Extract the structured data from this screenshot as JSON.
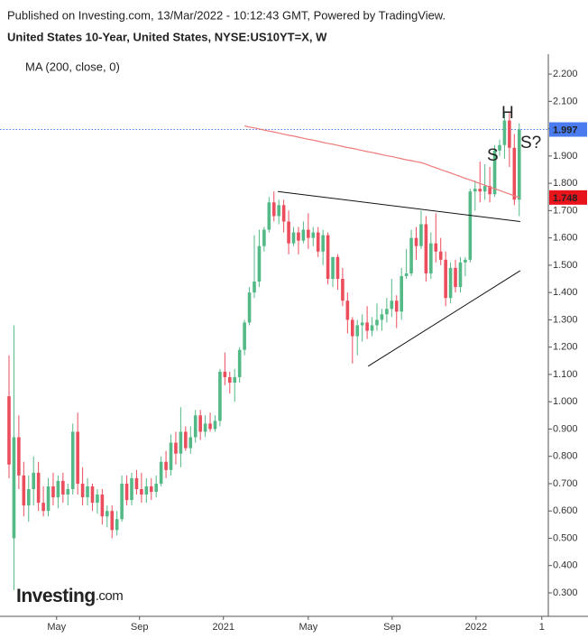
{
  "chart_data": {
    "type": "candlestick",
    "title": "Published on Investing.com, 13/Mar/2022 - 10:12:43 GMT, Powered by TradingView.",
    "subtitle": "United States 10-Year, United States, NYSE:US10YT=X, W",
    "up_color": "#53b987",
    "down_color": "#eb4d5c",
    "open": [
      1.02,
      0.5,
      0.87,
      0.73,
      0.62,
      0.68,
      0.74,
      0.63,
      0.6,
      0.69,
      0.65,
      0.71,
      0.66,
      0.68,
      0.89,
      0.7,
      0.65,
      0.69,
      0.63,
      0.66,
      0.58,
      0.6,
      0.53,
      0.57,
      0.7,
      0.64,
      0.72,
      0.68,
      0.66,
      0.69,
      0.67,
      0.7,
      0.78,
      0.75,
      0.85,
      0.81,
      0.89,
      0.83,
      0.87,
      0.95,
      0.89,
      0.92,
      0.9,
      0.93,
      1.11,
      1.09,
      1.07,
      1.09,
      1.19,
      1.29,
      1.4,
      1.44,
      1.57,
      1.63,
      1.73,
      1.68,
      1.72,
      1.66,
      1.58,
      1.62,
      1.59,
      1.63,
      1.6,
      1.62,
      1.55,
      1.61,
      1.45,
      1.53,
      1.45,
      1.37,
      1.3,
      1.24,
      1.28,
      1.29,
      1.26,
      1.28,
      1.3,
      1.32,
      1.34,
      1.37,
      1.33,
      1.46,
      1.47,
      1.6,
      1.57,
      1.65,
      1.47,
      1.58,
      1.55,
      1.52,
      1.38,
      1.49,
      1.42,
      1.51,
      1.52,
      1.77,
      1.78,
      1.77,
      1.79,
      1.76,
      1.92,
      1.94,
      2.03,
      1.93,
      1.74
    ],
    "high": [
      1.17,
      1.28,
      0.95,
      0.78,
      0.73,
      0.8,
      0.78,
      0.69,
      0.72,
      0.74,
      0.73,
      0.74,
      0.7,
      0.92,
      0.96,
      0.76,
      0.72,
      0.7,
      0.68,
      0.68,
      0.62,
      0.62,
      0.6,
      0.73,
      0.73,
      0.74,
      0.75,
      0.74,
      0.72,
      0.72,
      0.73,
      0.8,
      0.82,
      0.88,
      0.89,
      0.98,
      0.91,
      0.91,
      0.97,
      0.97,
      0.95,
      0.96,
      0.95,
      1.12,
      1.18,
      1.11,
      1.12,
      1.2,
      1.3,
      1.42,
      1.61,
      1.63,
      1.64,
      1.75,
      1.77,
      1.74,
      1.74,
      1.7,
      1.64,
      1.64,
      1.66,
      1.69,
      1.64,
      1.64,
      1.63,
      1.62,
      1.53,
      1.54,
      1.49,
      1.4,
      1.31,
      1.3,
      1.32,
      1.35,
      1.31,
      1.36,
      1.34,
      1.38,
      1.45,
      1.39,
      1.49,
      1.56,
      1.63,
      1.64,
      1.7,
      1.68,
      1.62,
      1.69,
      1.6,
      1.55,
      1.51,
      1.52,
      1.53,
      1.53,
      1.78,
      1.81,
      1.88,
      1.87,
      1.86,
      1.94,
      1.96,
      2.06,
      2.06,
      1.98,
      2.02
    ],
    "low": [
      0.72,
      0.31,
      0.68,
      0.58,
      0.56,
      0.62,
      0.6,
      0.58,
      0.58,
      0.62,
      0.61,
      0.63,
      0.62,
      0.66,
      0.66,
      0.62,
      0.62,
      0.6,
      0.59,
      0.55,
      0.54,
      0.5,
      0.51,
      0.56,
      0.62,
      0.62,
      0.66,
      0.63,
      0.63,
      0.64,
      0.65,
      0.69,
      0.72,
      0.73,
      0.77,
      0.76,
      0.82,
      0.81,
      0.85,
      0.86,
      0.87,
      0.89,
      0.89,
      0.91,
      1.06,
      1.03,
      1.0,
      1.07,
      1.17,
      1.28,
      1.38,
      1.42,
      1.55,
      1.62,
      1.66,
      1.65,
      1.62,
      1.54,
      1.57,
      1.54,
      1.58,
      1.56,
      1.57,
      1.53,
      1.5,
      1.43,
      1.42,
      1.41,
      1.35,
      1.25,
      1.14,
      1.17,
      1.22,
      1.23,
      1.24,
      1.26,
      1.26,
      1.29,
      1.31,
      1.27,
      1.3,
      1.45,
      1.46,
      1.52,
      1.56,
      1.44,
      1.45,
      1.51,
      1.5,
      1.35,
      1.36,
      1.4,
      1.4,
      1.46,
      1.51,
      1.7,
      1.73,
      1.74,
      1.73,
      1.75,
      1.9,
      1.89,
      1.86,
      1.72,
      1.68
    ],
    "close": [
      0.77,
      0.87,
      0.73,
      0.62,
      0.68,
      0.74,
      0.63,
      0.6,
      0.69,
      0.65,
      0.71,
      0.66,
      0.68,
      0.89,
      0.7,
      0.65,
      0.69,
      0.63,
      0.66,
      0.58,
      0.6,
      0.53,
      0.57,
      0.7,
      0.64,
      0.72,
      0.68,
      0.66,
      0.69,
      0.67,
      0.7,
      0.78,
      0.75,
      0.85,
      0.81,
      0.89,
      0.83,
      0.87,
      0.95,
      0.89,
      0.92,
      0.9,
      0.93,
      1.11,
      1.09,
      1.07,
      1.09,
      1.19,
      1.29,
      1.4,
      1.44,
      1.57,
      1.63,
      1.73,
      1.68,
      1.72,
      1.66,
      1.58,
      1.62,
      1.59,
      1.63,
      1.6,
      1.62,
      1.55,
      1.61,
      1.45,
      1.53,
      1.45,
      1.37,
      1.3,
      1.24,
      1.28,
      1.29,
      1.26,
      1.28,
      1.3,
      1.32,
      1.34,
      1.37,
      1.33,
      1.46,
      1.47,
      1.6,
      1.57,
      1.65,
      1.47,
      1.58,
      1.55,
      1.52,
      1.38,
      1.49,
      1.42,
      1.51,
      1.52,
      1.77,
      1.78,
      1.77,
      1.79,
      1.76,
      1.92,
      1.94,
      2.03,
      1.93,
      1.74,
      1.997
    ],
    "ma": {
      "name": "MA (200, close, 0)",
      "color": "#ef7a7a",
      "values": [
        null,
        null,
        null,
        null,
        null,
        null,
        null,
        null,
        null,
        null,
        null,
        null,
        null,
        null,
        null,
        null,
        null,
        null,
        null,
        null,
        null,
        null,
        null,
        null,
        null,
        null,
        null,
        null,
        null,
        null,
        null,
        null,
        null,
        null,
        null,
        null,
        null,
        null,
        null,
        null,
        null,
        null,
        null,
        null,
        null,
        null,
        null,
        null,
        2.01,
        2.006,
        2.003,
        1.999,
        1.995,
        1.991,
        1.988,
        1.984,
        1.98,
        1.976,
        1.973,
        1.969,
        1.965,
        1.961,
        1.958,
        1.954,
        1.95,
        1.946,
        1.943,
        1.939,
        1.935,
        1.931,
        1.928,
        1.924,
        1.92,
        1.916,
        1.913,
        1.909,
        1.905,
        1.901,
        1.898,
        1.894,
        1.89,
        1.886,
        1.883,
        1.879,
        1.876,
        1.87,
        1.863,
        1.857,
        1.85,
        1.844,
        1.838,
        1.831,
        1.825,
        1.818,
        1.812,
        1.806,
        1.799,
        1.793,
        1.786,
        1.78,
        1.774,
        1.767,
        1.761,
        1.754,
        1.748
      ]
    },
    "last_price_color": "#4a7cf0",
    "trendlines": [
      {
        "color": "#111111",
        "x": [
          54.8,
          104.2
        ],
        "y": [
          1.77,
          1.66
        ]
      },
      {
        "color": "#111111",
        "x": [
          73.2,
          104.2
        ],
        "y": [
          1.13,
          1.48
        ]
      }
    ],
    "annotations": [
      {
        "text": "H",
        "color": "#6b7f95"
      },
      {
        "text": "S?",
        "color": "#222222"
      },
      {
        "text": "S",
        "color": "#9aa9b8"
      }
    ],
    "xlim": [
      -1.84,
      109.93
    ],
    "xticks": [
      {
        "value": 9.7,
        "label": "May"
      },
      {
        "value": 26.6,
        "label": "Sep"
      },
      {
        "value": 43.7,
        "label": "2021"
      },
      {
        "value": 61.0,
        "label": "May"
      },
      {
        "value": 78.1,
        "label": "Sep"
      },
      {
        "value": 95.2,
        "label": "2022"
      },
      {
        "value": 108.6,
        "label": "1"
      }
    ],
    "ylim": [
      0.214,
      2.273
    ],
    "yticks": [
      {
        "value": 0.3,
        "label": "0.300"
      },
      {
        "value": 0.4,
        "label": "0.400"
      },
      {
        "value": 0.5,
        "label": "0.500"
      },
      {
        "value": 0.6,
        "label": "0.600"
      },
      {
        "value": 0.7,
        "label": "0.700"
      },
      {
        "value": 0.8,
        "label": "0.800"
      },
      {
        "value": 0.9,
        "label": "0.900"
      },
      {
        "value": 1.0,
        "label": "1.000"
      },
      {
        "value": 1.1,
        "label": "1.100"
      },
      {
        "value": 1.2,
        "label": "1.200"
      },
      {
        "value": 1.3,
        "label": "1.300"
      },
      {
        "value": 1.4,
        "label": "1.400"
      },
      {
        "value": 1.5,
        "label": "1.500"
      },
      {
        "value": 1.6,
        "label": "1.600"
      },
      {
        "value": 1.7,
        "label": "1.700"
      },
      {
        "value": 1.8,
        "label": "1.800"
      },
      {
        "value": 1.9,
        "label": "1.900"
      },
      {
        "value": 2.0,
        "label": "2.000"
      },
      {
        "value": 2.1,
        "label": "2.100"
      },
      {
        "value": 2.2,
        "label": "2.200"
      }
    ],
    "logo": {
      "brand": "Investing",
      "suffix": ".com"
    }
  }
}
